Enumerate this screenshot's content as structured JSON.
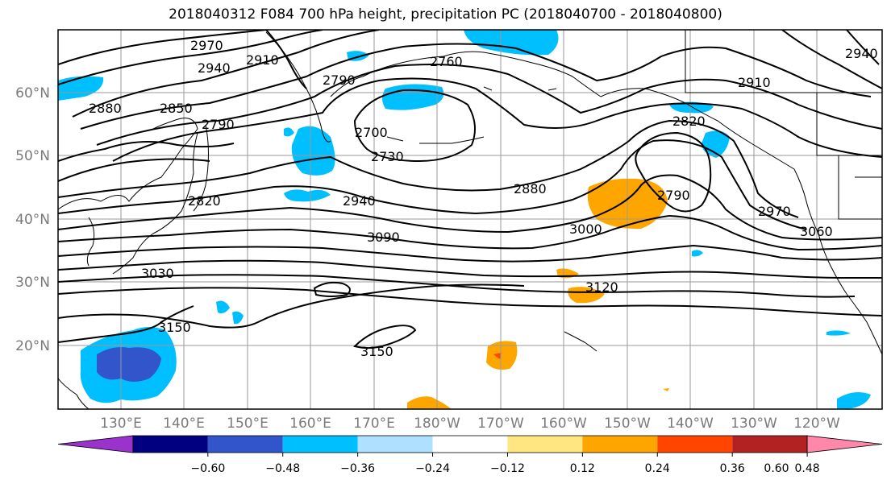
{
  "title": "2018040312 F084 700 hPa height, precipitation PC (2018040700 - 2018040800)",
  "map": {
    "lat_labels": [
      "60°N",
      "50°N",
      "40°N",
      "30°N",
      "20°N"
    ],
    "lon_labels": [
      "130°E",
      "140°E",
      "150°E",
      "160°E",
      "170°E",
      "180°W",
      "170°W",
      "160°W",
      "150°W",
      "140°W",
      "130°W",
      "120°W"
    ],
    "contour_labels": [
      "2970",
      "2940",
      "2910",
      "2760",
      "2790",
      "2880",
      "2850",
      "2790",
      "2700",
      "2730",
      "2820",
      "2940",
      "3090",
      "3030",
      "3150",
      "3150",
      "2880",
      "3000",
      "3120",
      "2820",
      "2790",
      "2910",
      "2970",
      "3060",
      "2940"
    ]
  },
  "colorbar": {
    "colors": [
      "#9933cc",
      "#000080",
      "#3355cc",
      "#00bfff",
      "#b0e0ff",
      "#ffffff",
      "#ffe680",
      "#ffa500",
      "#ff4500",
      "#b22222",
      "#ff88aa"
    ],
    "tick_labels": [
      "−0.60",
      "−0.48",
      "−0.36",
      "−0.24",
      "−0.12",
      "0.12",
      "0.24",
      "0.36",
      "0.48",
      "0.60"
    ]
  }
}
